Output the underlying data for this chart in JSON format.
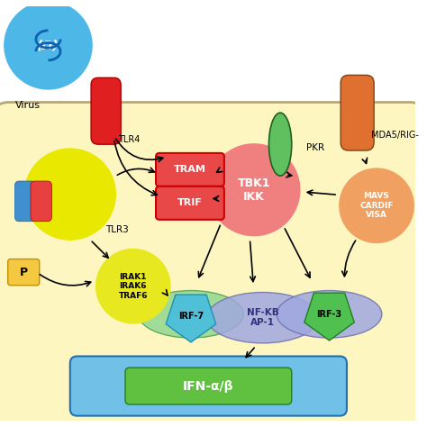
{
  "bg_color": "#ffffff",
  "cell_bg": "#fdf6c0",
  "cell_edge": "#b8a878",
  "virus_color": "#4db8e8",
  "virus_label": "Virus",
  "tlr4_color": "#e02020",
  "tlr4_label": "TLR4",
  "tram_color": "#e84848",
  "tram_label": "TRAM",
  "trif_color": "#e84848",
  "trif_label": "TRIF",
  "tbk1_color": "#f08080",
  "tbk1_label": "TBK1\nIKK",
  "tlr3_color": "#e8e800",
  "tlr3_label": "TLR3",
  "tlr3_blue": "#4090d0",
  "tlr3_red": "#e84040",
  "pkr_color": "#60c060",
  "pkr_label": "PKR",
  "mda5_color": "#e07030",
  "mda5_label": "MDA5/RIG-",
  "mavs_color": "#f0a060",
  "mavs_label": "MAVS\nCARDIF\nVISA",
  "irak_color": "#e8e820",
  "irak_label": "IRAK1\nIRAK6\nTRAF6",
  "irf7_color": "#50c0d8",
  "irf7_label": "IRF-7",
  "nfkb_label": "NF-KB\nAP-1",
  "irf3_color": "#50c050",
  "irf3_label": "IRF-3",
  "irf7_ellipse_color": "#90d890",
  "nfkb_ellipse_color": "#a0a8e0",
  "ifn_bg_color": "#70c0e8",
  "ifn_green_color": "#60c040",
  "ifn_label": "IFN-α/β",
  "p_color": "#f5c842",
  "p_label": "P"
}
